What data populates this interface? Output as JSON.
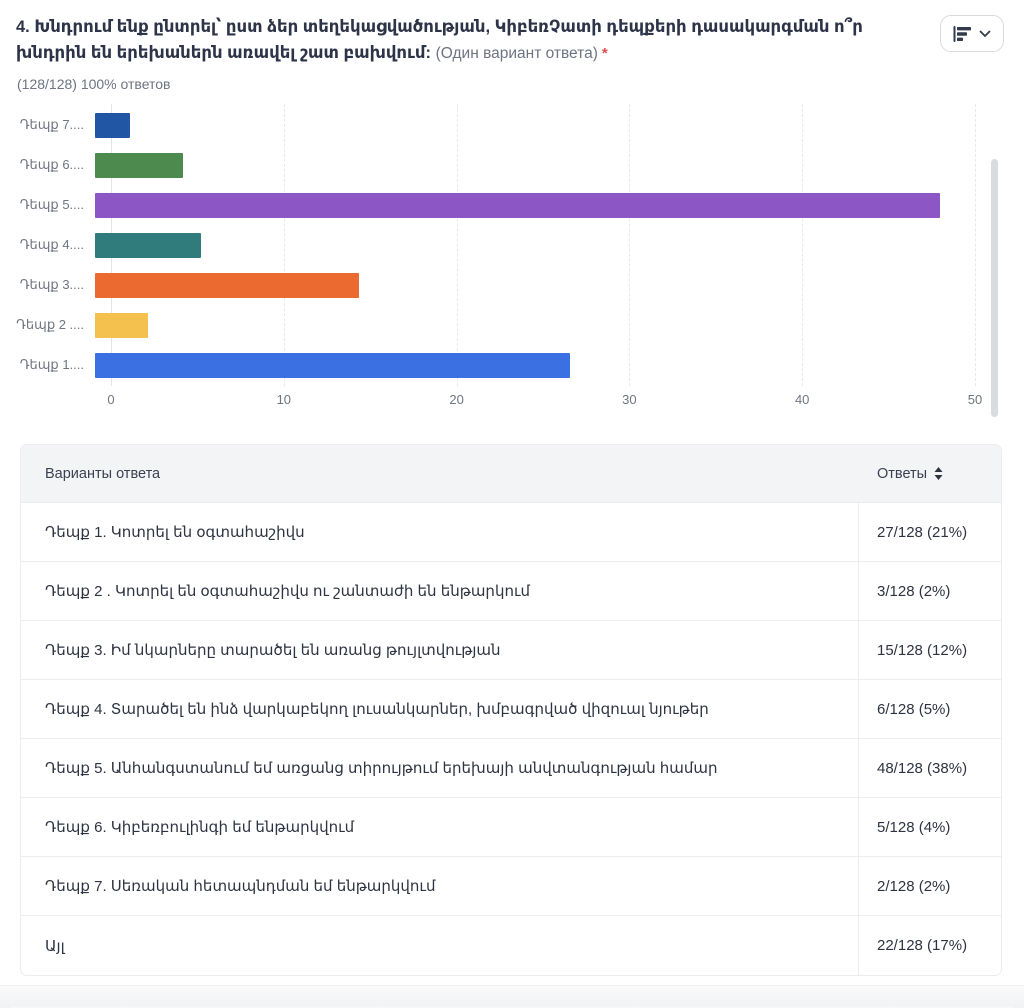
{
  "header": {
    "question_title": "4. Խնդրում ենք ընտրել՝ ըստ ձեր տեղեկացվածության, ԿիբեռՉատի դեպքերի դասակարգման ո՞ր խնդրին են երեխաներն առավել շատ բախվում:",
    "answer_note": "(Один вариант ответа)",
    "required_mark": "*",
    "response_stats": "(128/128) 100% ответов",
    "chart_type_button": {
      "icon": "horizontal-bar-chart-icon",
      "chevron": "chevron-down-icon"
    }
  },
  "chart_data": {
    "type": "bar",
    "orientation": "horizontal",
    "categories": [
      "Դեպք 7....",
      "Դեպք 6....",
      "Դեպք 5....",
      "Դեպք 4....",
      "Դեպք 3....",
      "Դեպք 2 ....",
      "Դեպք 1...."
    ],
    "values": [
      2,
      5,
      48,
      6,
      15,
      3,
      27
    ],
    "colors": [
      "#2156a4",
      "#4c8a4e",
      "#8c57c4",
      "#307c7c",
      "#ea6a2f",
      "#f4c14f",
      "#3b70e2"
    ],
    "title": "",
    "xlabel": "",
    "ylabel": "",
    "xlim": [
      0,
      50
    ],
    "x_ticks": [
      "0",
      "10",
      "20",
      "30",
      "40",
      "50"
    ],
    "grid": "dashed-vertical-gridlines",
    "legend": "none"
  },
  "table": {
    "col_options_header": "Варианты ответа",
    "col_answers_header": "Ответы",
    "sort_icon": "sort-arrows-icon",
    "rows": [
      {
        "option": "Դեպք 1. Կոտրել են օգտահաշիվս",
        "answers": "27/128 (21%)"
      },
      {
        "option": "Դեպք 2 . Կոտրել են օգտահաշիվս ու շանտաժի են ենթարկում",
        "answers": "3/128 (2%)"
      },
      {
        "option": "Դեպք 3. Իմ նկարները տարածել են առանց թույլտվության",
        "answers": "15/128 (12%)"
      },
      {
        "option": "Դեպք 4. Տարածել են ինձ վարկաբեկող լուսանկարներ, խմբագրված վիզուալ նյութեր",
        "answers": "6/128 (5%)"
      },
      {
        "option": "Դեպք 5. Անհանգստանում եմ առցանց տիրույթում երեխայի անվտանգության համար",
        "answers": "48/128 (38%)"
      },
      {
        "option": "Դեպք 6. Կիբեռբուլինգի եմ ենթարկվում",
        "answers": "5/128 (4%)"
      },
      {
        "option": "Դեպք 7. Սեռական հետապնդման եմ ենթարկվում",
        "answers": "2/128 (2%)"
      },
      {
        "option": "Այլ",
        "answers": "22/128 (17%)"
      }
    ]
  }
}
